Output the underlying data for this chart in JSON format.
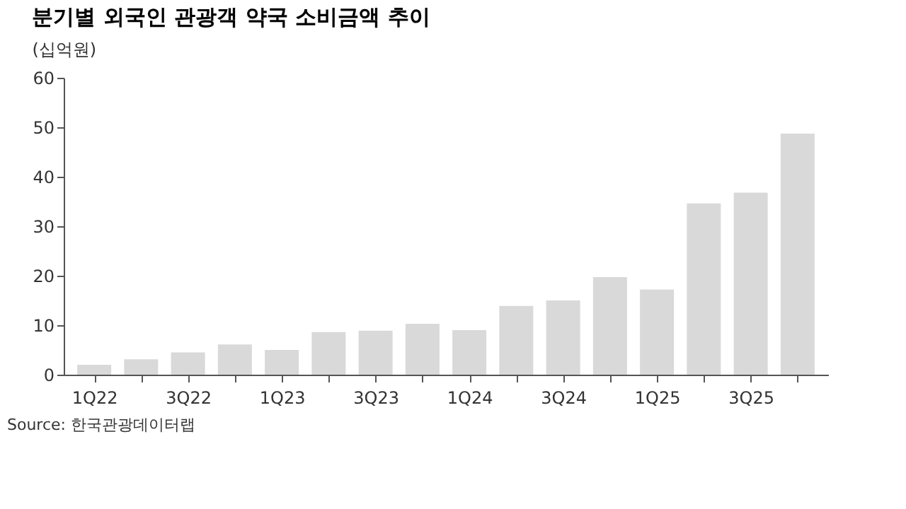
{
  "chart_data": {
    "type": "bar",
    "title": "분기별 외국인 관광객 약국 소비금액 추이",
    "ylabel": "(십억원)",
    "categories": [
      "1Q22",
      null,
      "3Q22",
      null,
      "1Q23",
      null,
      "3Q23",
      null,
      "1Q24",
      null,
      "3Q24",
      null,
      "1Q25",
      null,
      "3Q25",
      null
    ],
    "values": [
      2.0,
      3.1,
      4.5,
      6.1,
      5.0,
      8.6,
      8.9,
      10.3,
      9.0,
      13.9,
      15.0,
      19.7,
      17.2,
      34.6,
      36.8,
      48.7
    ],
    "color": "#d9d9d9",
    "ylim": [
      0,
      60
    ],
    "yticks": [
      0,
      10,
      20,
      30,
      40,
      50,
      60
    ],
    "grid": false,
    "annotations": [
      "Source: 한국관광데이터랩"
    ]
  }
}
